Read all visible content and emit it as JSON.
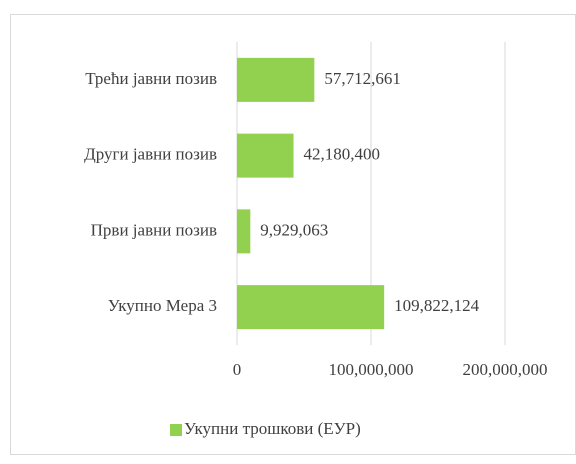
{
  "chart_data": {
    "type": "bar",
    "orientation": "horizontal",
    "categories": [
      "Трећи јавни позив",
      "Други јавни позив",
      "Први јавни позив",
      "Укупно Мера 3"
    ],
    "series": [
      {
        "name": "Укупни трошкови (ЕУР)",
        "color": "#92d050",
        "values": [
          57712661,
          42180400,
          9929063,
          109822124
        ],
        "value_labels": [
          "57,712,661",
          "42,180,400",
          "9,929,063",
          "109,822,124"
        ]
      }
    ],
    "xlim": [
      0,
      200000000
    ],
    "xticks": [
      0,
      {
        "value": 100000000,
        "label": "100,000,000"
      },
      {
        "value": 200000000,
        "label": "200,000,000"
      }
    ],
    "grid": true,
    "legend": "bottom"
  }
}
